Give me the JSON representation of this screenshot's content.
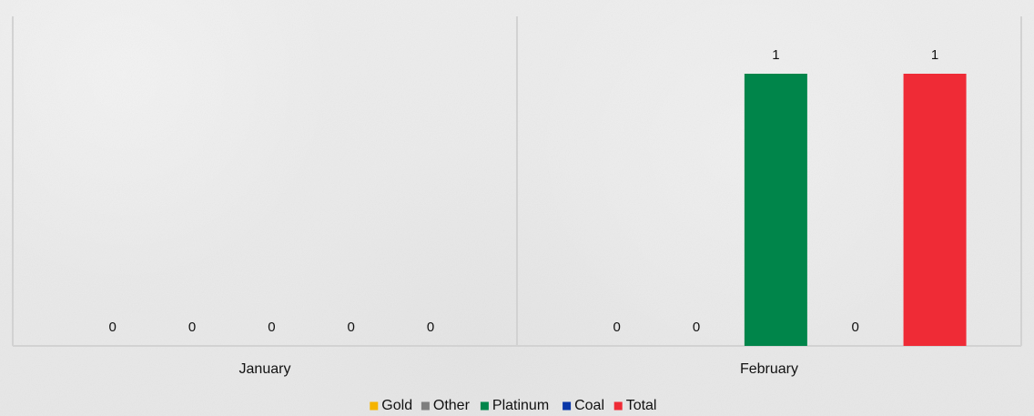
{
  "chart_data": {
    "type": "bar",
    "categories": [
      "January",
      "February"
    ],
    "series": [
      {
        "name": "Gold",
        "values": [
          0,
          0
        ],
        "color": "#f5b400"
      },
      {
        "name": "Other",
        "values": [
          0,
          0
        ],
        "color": "#7f7f7f"
      },
      {
        "name": "Platinum",
        "values": [
          0,
          1
        ],
        "color": "#00854a"
      },
      {
        "name": "Coal",
        "values": [
          0,
          0
        ],
        "color": "#0a37a8"
      },
      {
        "name": "Total",
        "values": [
          0,
          1
        ],
        "color": "#ef2b36"
      }
    ],
    "ylim": [
      0,
      1
    ],
    "grid": false,
    "legend_position": "bottom"
  }
}
